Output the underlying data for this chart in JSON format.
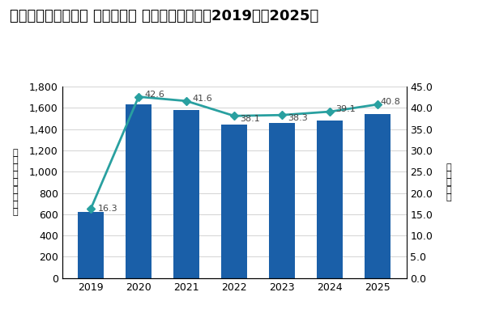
{
  "title": "国内テレワーク市場 テレワーク 導入企業数予測、2019年～2025年",
  "years": [
    2019,
    2020,
    2021,
    2022,
    2023,
    2024,
    2025
  ],
  "bar_values": [
    620,
    1630,
    1580,
    1440,
    1455,
    1480,
    1545
  ],
  "line_values": [
    16.3,
    42.6,
    41.6,
    38.1,
    38.3,
    39.1,
    40.8
  ],
  "bar_color": "#1a5fa8",
  "line_color": "#29a0a0",
  "ylabel_left": "（\n企\n業\n数\n（\n千\n社\n）\n）",
  "ylabel_right": "（\n実\n施\n率\n）",
  "ylim_left": [
    0,
    1800
  ],
  "ylim_right": [
    0.0,
    45.0
  ],
  "yticks_left": [
    0,
    200,
    400,
    600,
    800,
    1000,
    1200,
    1400,
    1600,
    1800
  ],
  "yticks_right": [
    0.0,
    5.0,
    10.0,
    15.0,
    20.0,
    25.0,
    30.0,
    35.0,
    40.0,
    45.0
  ],
  "background_color": "#ffffff",
  "title_fontsize": 13,
  "tick_fontsize": 9,
  "annotation_fontsize": 8,
  "annot_labels": [
    "16.3",
    "42.6",
    "41.6",
    "38.1",
    "38.3",
    "39.1",
    "40.8"
  ],
  "annot_ha": [
    "left",
    "left",
    "left",
    "left",
    "left",
    "left",
    "left"
  ],
  "annot_dx": [
    0.15,
    0.12,
    0.12,
    0.12,
    0.12,
    0.12,
    0.05
  ],
  "annot_dy": [
    0.0,
    0.5,
    0.5,
    -0.8,
    -0.8,
    0.5,
    0.5
  ]
}
